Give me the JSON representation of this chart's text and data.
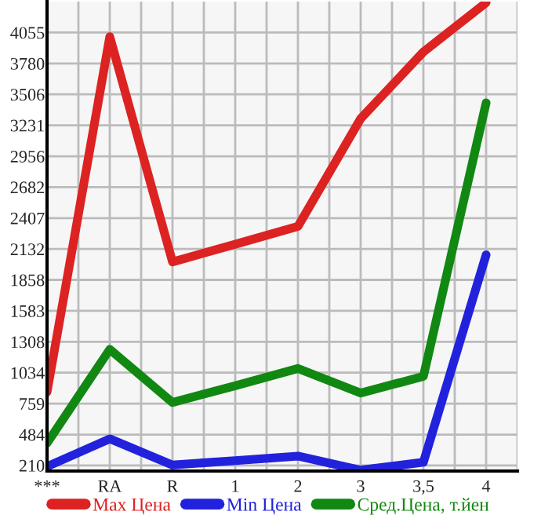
{
  "chart_data": {
    "type": "line",
    "categories": [
      "***",
      "RA",
      "R",
      "1",
      "2",
      "3",
      "3,5",
      "4"
    ],
    "series": [
      {
        "name": "Max Цена",
        "color": "#dd2222",
        "values": [
          862,
          4018,
          2018,
          2175,
          2333,
          3290,
          3883,
          4320
        ]
      },
      {
        "name": "Min Цена",
        "color": "#2222dd",
        "values": [
          200,
          446,
          214,
          252,
          293,
          168,
          238,
          2080
        ]
      },
      {
        "name": "Сред.Цена, т.йен",
        "color": "#118811",
        "values": [
          408,
          1241,
          769,
          918,
          1071,
          853,
          1001,
          3430
        ]
      }
    ],
    "ylim": [
      160,
      4330
    ],
    "yticks": [
      210,
      484,
      759,
      1034,
      1308,
      1583,
      1858,
      2132,
      2407,
      2682,
      2956,
      3231,
      3506,
      3780,
      4055
    ],
    "grid": true,
    "legend": "bottom",
    "marker": "none",
    "line_style": "solid"
  }
}
